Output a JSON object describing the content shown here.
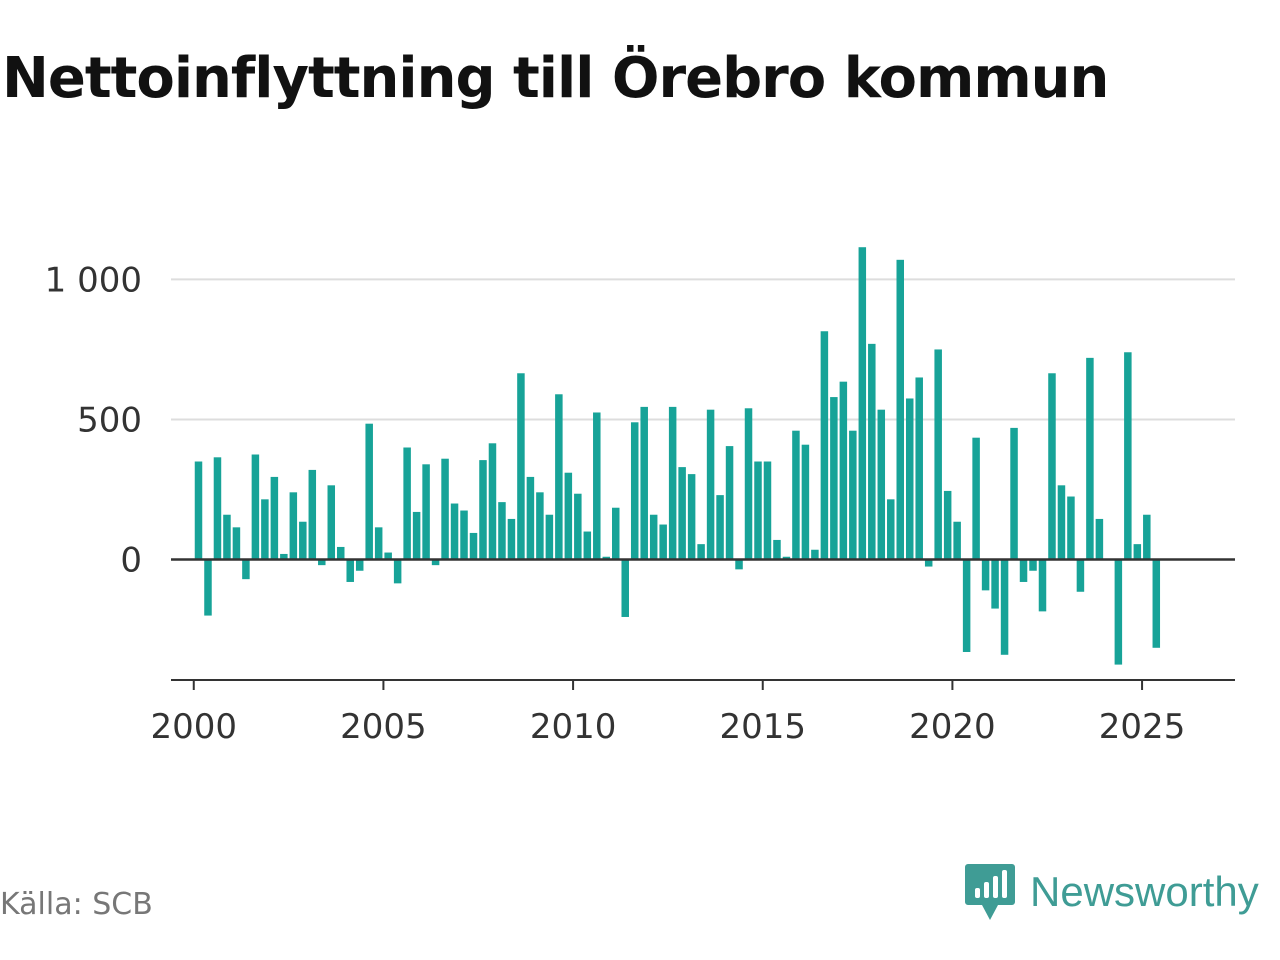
{
  "title": "Nettoinflyttning till Örebro kommun",
  "source": "Källa: SCB",
  "brand": {
    "name": "Newsworthy",
    "icon": "newsworthy-logo-icon"
  },
  "colors": {
    "bar": "#17a398",
    "grid": "#dddddd",
    "axis": "#333333",
    "brand": "#3f9c95"
  },
  "chart_data": {
    "type": "bar",
    "title": "Nettoinflyttning till Örebro kommun",
    "xlabel": "",
    "ylabel": "",
    "xlim": [
      1999.4,
      2027.45
    ],
    "ylim": [
      -430,
      1230
    ],
    "y_ticks": [
      0,
      500,
      1000
    ],
    "y_tick_labels": [
      "0",
      "500",
      "1 000"
    ],
    "x_ticks": [
      2000,
      2005,
      2010,
      2015,
      2020,
      2025
    ],
    "x_tick_labels": [
      "2000",
      "2005",
      "2010",
      "2015",
      "2020",
      "2025"
    ],
    "grid": true,
    "x": [
      "2000-Q1",
      "2000-Q2",
      "2000-Q3",
      "2000-Q4",
      "2001-Q1",
      "2001-Q2",
      "2001-Q3",
      "2001-Q4",
      "2002-Q1",
      "2002-Q2",
      "2002-Q3",
      "2002-Q4",
      "2003-Q1",
      "2003-Q2",
      "2003-Q3",
      "2003-Q4",
      "2004-Q1",
      "2004-Q2",
      "2004-Q3",
      "2004-Q4",
      "2005-Q1",
      "2005-Q2",
      "2005-Q3",
      "2005-Q4",
      "2006-Q1",
      "2006-Q2",
      "2006-Q3",
      "2006-Q4",
      "2007-Q1",
      "2007-Q2",
      "2007-Q3",
      "2007-Q4",
      "2008-Q1",
      "2008-Q2",
      "2008-Q3",
      "2008-Q4",
      "2009-Q1",
      "2009-Q2",
      "2009-Q3",
      "2009-Q4",
      "2010-Q1",
      "2010-Q2",
      "2010-Q3",
      "2010-Q4",
      "2011-Q1",
      "2011-Q2",
      "2011-Q3",
      "2011-Q4",
      "2012-Q1",
      "2012-Q2",
      "2012-Q3",
      "2012-Q4",
      "2013-Q1",
      "2013-Q2",
      "2013-Q3",
      "2013-Q4",
      "2014-Q1",
      "2014-Q2",
      "2014-Q3",
      "2014-Q4",
      "2015-Q1",
      "2015-Q2",
      "2015-Q3",
      "2015-Q4",
      "2016-Q1",
      "2016-Q2",
      "2016-Q3",
      "2016-Q4",
      "2017-Q1",
      "2017-Q2",
      "2017-Q3",
      "2017-Q4",
      "2018-Q1",
      "2018-Q2",
      "2018-Q3",
      "2018-Q4",
      "2019-Q1",
      "2019-Q2",
      "2019-Q3",
      "2019-Q4",
      "2020-Q1",
      "2020-Q2",
      "2020-Q3",
      "2020-Q4",
      "2021-Q1",
      "2021-Q2",
      "2021-Q3",
      "2021-Q4",
      "2022-Q1",
      "2022-Q2",
      "2022-Q3",
      "2022-Q4",
      "2023-Q1",
      "2023-Q2",
      "2023-Q3",
      "2023-Q4",
      "2024-Q1",
      "2024-Q2",
      "2024-Q3",
      "2024-Q4",
      "2025-Q1",
      "2025-Q2"
    ],
    "values": [
      350,
      -200,
      365,
      160,
      115,
      -70,
      375,
      215,
      295,
      20,
      240,
      135,
      320,
      -20,
      265,
      45,
      -80,
      -40,
      485,
      115,
      25,
      -85,
      400,
      170,
      340,
      -20,
      360,
      200,
      175,
      95,
      355,
      415,
      205,
      145,
      665,
      295,
      240,
      160,
      590,
      310,
      235,
      100,
      525,
      10,
      185,
      -205,
      490,
      545,
      160,
      125,
      545,
      330,
      305,
      55,
      535,
      230,
      405,
      -35,
      540,
      350,
      350,
      70,
      10,
      460,
      410,
      35,
      815,
      580,
      635,
      460,
      1115,
      770,
      535,
      215,
      1070,
      575,
      650,
      -25,
      750,
      245,
      135,
      -330,
      435,
      -110,
      -175,
      -340,
      470,
      -80,
      -40,
      -185,
      665,
      265,
      225,
      -115,
      720,
      145,
      0,
      -375,
      740,
      55,
      160,
      -315
    ]
  }
}
